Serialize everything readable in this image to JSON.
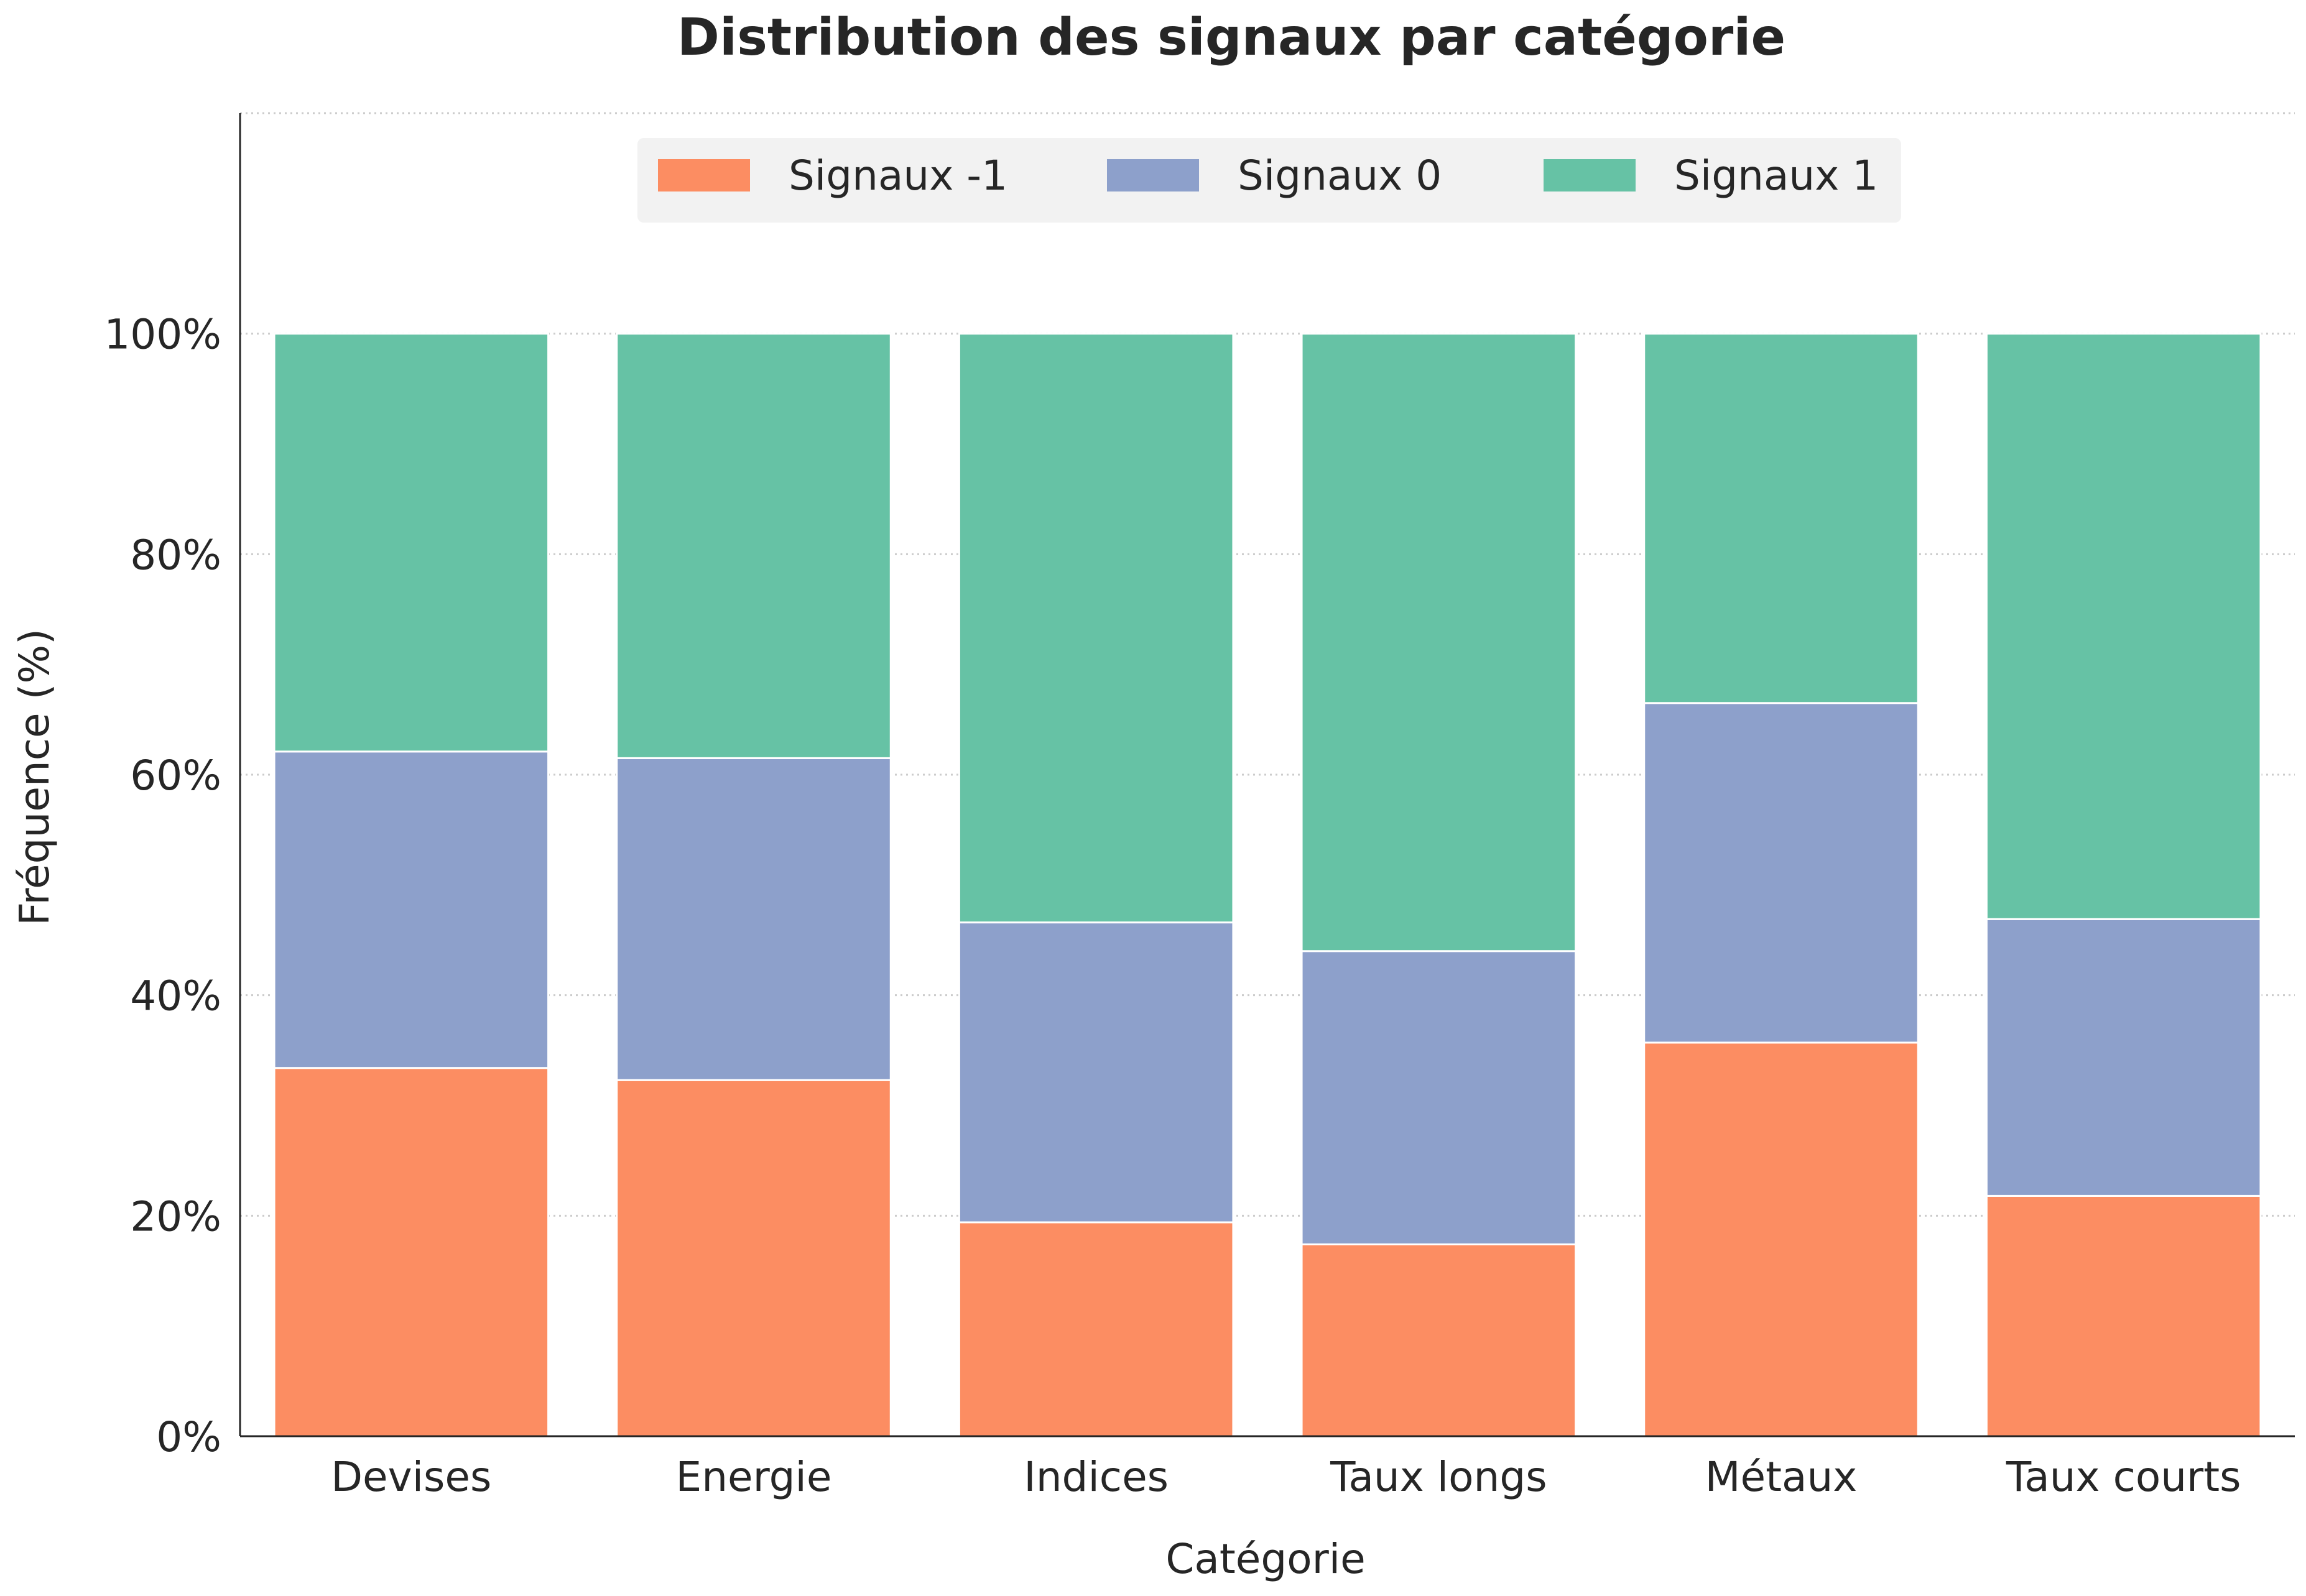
{
  "chart_data": {
    "type": "bar",
    "stacked": true,
    "title": "Distribution des signaux par catégorie",
    "xlabel": "Catégorie",
    "ylabel": "Fréquence (%)",
    "categories": [
      "Devises",
      "Energie",
      "Indices",
      "Taux longs",
      "Métaux",
      "Taux courts"
    ],
    "series": [
      {
        "name": "Signaux -1",
        "color": "#fc8d62",
        "values": [
          33.4,
          32.3,
          19.4,
          17.4,
          35.7,
          21.8
        ]
      },
      {
        "name": "Signaux 0",
        "color": "#8da0cb",
        "values": [
          28.7,
          29.2,
          27.2,
          26.6,
          30.8,
          25.1
        ]
      },
      {
        "name": "Signaux 1",
        "color": "#66c2a5",
        "values": [
          37.9,
          38.5,
          53.4,
          56.0,
          33.5,
          53.1
        ]
      }
    ],
    "ylim": [
      0,
      120
    ],
    "yticks": [
      0,
      20,
      40,
      60,
      80,
      100
    ],
    "ytick_labels": [
      "0%",
      "20%",
      "40%",
      "60%",
      "80%",
      "100%"
    ],
    "grid": true,
    "legend_position": "top-center"
  }
}
